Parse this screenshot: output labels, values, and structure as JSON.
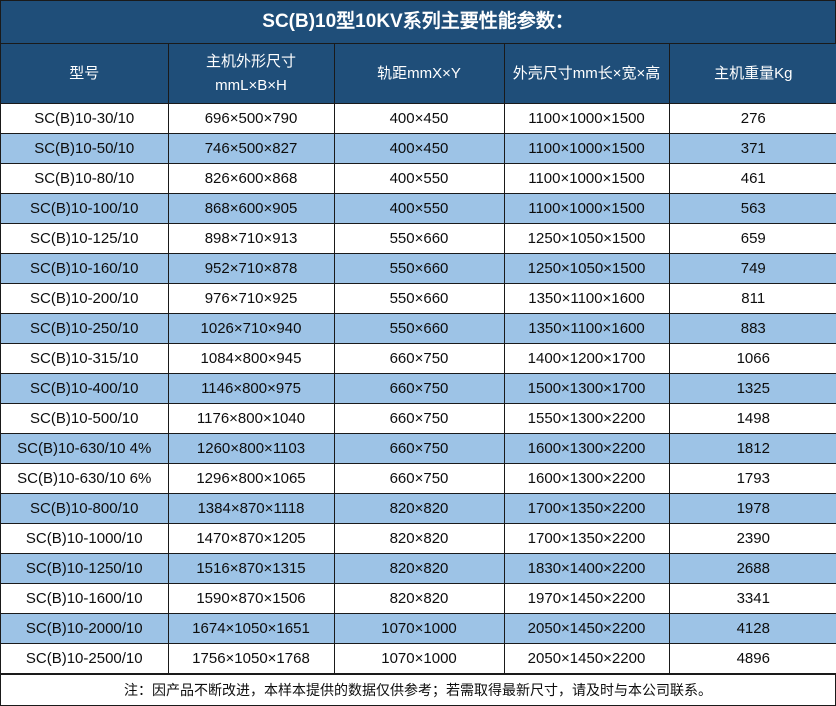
{
  "title": "SC(B)10型10KV系列主要性能参数：",
  "columns": [
    {
      "label": "型号"
    },
    {
      "label": "主机外形尺寸\nmmL×B×H"
    },
    {
      "label": "轨距mmX×Y"
    },
    {
      "label": "外壳尺寸mm长×宽×高"
    },
    {
      "label": "主机重量Kg"
    }
  ],
  "rows": [
    {
      "model": "SC(B)10-30/10",
      "host_dims": "696×500×790",
      "rail_gauge": "400×450",
      "shell_dims": "1100×1000×1500",
      "weight": "276"
    },
    {
      "model": "SC(B)10-50/10",
      "host_dims": "746×500×827",
      "rail_gauge": "400×450",
      "shell_dims": "1100×1000×1500",
      "weight": "371"
    },
    {
      "model": "SC(B)10-80/10",
      "host_dims": "826×600×868",
      "rail_gauge": "400×550",
      "shell_dims": "1100×1000×1500",
      "weight": "461"
    },
    {
      "model": "SC(B)10-100/10",
      "host_dims": "868×600×905",
      "rail_gauge": "400×550",
      "shell_dims": "1100×1000×1500",
      "weight": "563"
    },
    {
      "model": "SC(B)10-125/10",
      "host_dims": "898×710×913",
      "rail_gauge": "550×660",
      "shell_dims": "1250×1050×1500",
      "weight": "659"
    },
    {
      "model": "SC(B)10-160/10",
      "host_dims": "952×710×878",
      "rail_gauge": "550×660",
      "shell_dims": "1250×1050×1500",
      "weight": "749"
    },
    {
      "model": "SC(B)10-200/10",
      "host_dims": "976×710×925",
      "rail_gauge": "550×660",
      "shell_dims": "1350×1100×1600",
      "weight": "811"
    },
    {
      "model": "SC(B)10-250/10",
      "host_dims": "1026×710×940",
      "rail_gauge": "550×660",
      "shell_dims": "1350×1100×1600",
      "weight": "883"
    },
    {
      "model": "SC(B)10-315/10",
      "host_dims": "1084×800×945",
      "rail_gauge": "660×750",
      "shell_dims": "1400×1200×1700",
      "weight": "1066"
    },
    {
      "model": "SC(B)10-400/10",
      "host_dims": "1146×800×975",
      "rail_gauge": "660×750",
      "shell_dims": "1500×1300×1700",
      "weight": "1325"
    },
    {
      "model": "SC(B)10-500/10",
      "host_dims": "1176×800×1040",
      "rail_gauge": "660×750",
      "shell_dims": "1550×1300×2200",
      "weight": "1498"
    },
    {
      "model": "SC(B)10-630/10 4%",
      "host_dims": "1260×800×1103",
      "rail_gauge": "660×750",
      "shell_dims": "1600×1300×2200",
      "weight": "1812"
    },
    {
      "model": "SC(B)10-630/10 6%",
      "host_dims": "1296×800×1065",
      "rail_gauge": "660×750",
      "shell_dims": "1600×1300×2200",
      "weight": "1793"
    },
    {
      "model": "SC(B)10-800/10",
      "host_dims": "1384×870×1118",
      "rail_gauge": "820×820",
      "shell_dims": "1700×1350×2200",
      "weight": "1978"
    },
    {
      "model": "SC(B)10-1000/10",
      "host_dims": "1470×870×1205",
      "rail_gauge": "820×820",
      "shell_dims": "1700×1350×2200",
      "weight": "2390"
    },
    {
      "model": "SC(B)10-1250/10",
      "host_dims": "1516×870×1315",
      "rail_gauge": "820×820",
      "shell_dims": "1830×1400×2200",
      "weight": "2688"
    },
    {
      "model": "SC(B)10-1600/10",
      "host_dims": "1590×870×1506",
      "rail_gauge": "820×820",
      "shell_dims": "1970×1450×2200",
      "weight": "3341"
    },
    {
      "model": "SC(B)10-2000/10",
      "host_dims": "1674×1050×1651",
      "rail_gauge": "1070×1000",
      "shell_dims": "2050×1450×2200",
      "weight": "4128"
    },
    {
      "model": "SC(B)10-2500/10",
      "host_dims": "1756×1050×1768",
      "rail_gauge": "1070×1000",
      "shell_dims": "2050×1450×2200",
      "weight": "4896"
    }
  ],
  "footer_note": "注：因产品不断改进，本样本提供的数据仅供参考；若需取得最新尺寸，请及时与本公司联系。",
  "colors": {
    "header_bg": "#1f4e79",
    "alt_row_bg": "#9dc3e6",
    "border": "#1a1a1a",
    "header_text": "#ffffff",
    "body_text": "#0d0d0d"
  }
}
